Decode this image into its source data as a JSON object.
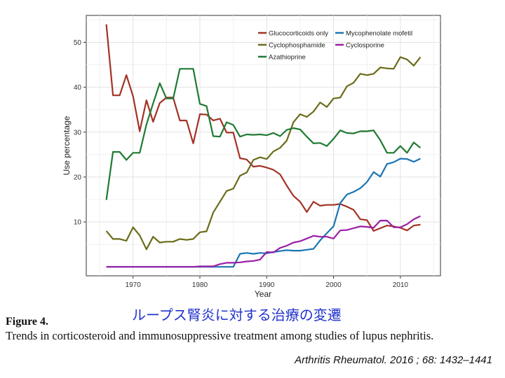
{
  "chart_data": {
    "type": "line",
    "xlabel": "Year",
    "ylabel": "Use percentage",
    "xlim": [
      1963,
      2016
    ],
    "ylim": [
      -2,
      56
    ],
    "x_ticks": [
      1970,
      1980,
      1990,
      2000,
      2010
    ],
    "y_ticks": [
      10,
      20,
      30,
      40,
      50
    ],
    "grid": true,
    "legend_position": "top-right",
    "series": [
      {
        "name": "Glucocorticoids only",
        "color": "#a33225",
        "x": [
          1966,
          1967,
          1968,
          1969,
          1970,
          1971,
          1972,
          1973,
          1974,
          1975,
          1976,
          1977,
          1978,
          1979,
          1980,
          1981,
          1982,
          1983,
          1984,
          1985,
          1986,
          1987,
          1988,
          1989,
          1990,
          1991,
          1992,
          1993,
          1994,
          1995,
          1996,
          1997,
          1998,
          1999,
          2000,
          2001,
          2002,
          2003,
          2004,
          2005,
          2006,
          2007,
          2008,
          2009,
          2010,
          2011,
          2012,
          2013
        ],
        "y": [
          54,
          38.2,
          38.2,
          42.7,
          38,
          30.2,
          37.1,
          32.3,
          36.5,
          37.7,
          37.7,
          32.6,
          32.6,
          27.5,
          34,
          33.9,
          32.6,
          33,
          29.9,
          29.9,
          24.2,
          23.9,
          22.3,
          22.5,
          22.1,
          21.6,
          20.6,
          18.1,
          15.8,
          14.5,
          12.2,
          14.5,
          13.6,
          13.8,
          13.8,
          14,
          13.4,
          12.7,
          10.6,
          10.4,
          8,
          8.6,
          9.2,
          9,
          8.7,
          8.1,
          9.2,
          9.4
        ]
      },
      {
        "name": "Cyclophosphamide",
        "color": "#6b6b1a",
        "x": [
          1966,
          1967,
          1968,
          1969,
          1970,
          1971,
          1972,
          1973,
          1974,
          1975,
          1976,
          1977,
          1978,
          1979,
          1980,
          1981,
          1982,
          1983,
          1984,
          1985,
          1986,
          1987,
          1988,
          1989,
          1990,
          1991,
          1992,
          1993,
          1994,
          1995,
          1996,
          1997,
          1998,
          1999,
          2000,
          2001,
          2002,
          2003,
          2004,
          2005,
          2006,
          2007,
          2008,
          2009,
          2010,
          2011,
          2012,
          2013
        ],
        "y": [
          8,
          6.2,
          6.2,
          5.8,
          8.8,
          7,
          3.9,
          6.7,
          5.4,
          5.6,
          5.6,
          6.2,
          6,
          6.2,
          7.7,
          7.9,
          12.1,
          14.5,
          16.9,
          17.4,
          20.3,
          21,
          23.8,
          24.4,
          24,
          25.7,
          26.5,
          28.1,
          32.2,
          34,
          33.4,
          34.6,
          36.6,
          35.6,
          37.5,
          37.7,
          40.2,
          41,
          43,
          42.7,
          43,
          44.4,
          44.2,
          44.1,
          46.7,
          46.2,
          44.8,
          46.7
        ]
      },
      {
        "name": "Azathioprine",
        "color": "#1f7a32",
        "x": [
          1966,
          1967,
          1968,
          1969,
          1970,
          1971,
          1972,
          1973,
          1974,
          1975,
          1976,
          1977,
          1978,
          1979,
          1980,
          1981,
          1982,
          1983,
          1984,
          1985,
          1986,
          1987,
          1988,
          1989,
          1990,
          1991,
          1992,
          1993,
          1994,
          1995,
          1996,
          1997,
          1998,
          1999,
          2000,
          2001,
          2002,
          2003,
          2004,
          2005,
          2006,
          2007,
          2008,
          2009,
          2010,
          2011,
          2012,
          2013
        ],
        "y": [
          14.9,
          25.6,
          25.6,
          23.8,
          25.4,
          25.4,
          31.7,
          36.4,
          40.9,
          37.5,
          37.5,
          44.1,
          44.1,
          44.1,
          36.3,
          35.8,
          29.1,
          29,
          32.2,
          31.6,
          29,
          29.5,
          29.4,
          29.5,
          29.3,
          29.8,
          29.1,
          30.5,
          30.9,
          30.6,
          29,
          27.5,
          27.6,
          26.9,
          28.5,
          30.4,
          29.8,
          29.7,
          30.2,
          30.2,
          30.4,
          28.2,
          25.4,
          25.4,
          26.9,
          25.4,
          27.7,
          26.5
        ]
      },
      {
        "name": "Mycophenolate mofetil",
        "color": "#1b75b5",
        "x": [
          1966,
          1967,
          1968,
          1969,
          1970,
          1971,
          1972,
          1973,
          1974,
          1975,
          1976,
          1977,
          1978,
          1979,
          1980,
          1981,
          1982,
          1983,
          1984,
          1985,
          1986,
          1987,
          1988,
          1989,
          1990,
          1991,
          1992,
          1993,
          1994,
          1995,
          1996,
          1997,
          1998,
          1999,
          2000,
          2001,
          2002,
          2003,
          2004,
          2005,
          2006,
          2007,
          2008,
          2009,
          2010,
          2011,
          2012,
          2013
        ],
        "y": [
          0,
          0,
          0,
          0,
          0,
          0,
          0,
          0,
          0,
          0,
          0,
          0,
          0,
          0,
          0,
          0,
          0,
          0,
          0,
          0,
          2.9,
          3.1,
          2.9,
          3.1,
          3,
          3.3,
          3.5,
          3.7,
          3.6,
          3.6,
          3.8,
          4,
          5.9,
          7.5,
          9,
          14.2,
          16.1,
          16.7,
          17.5,
          18.9,
          21.1,
          20.1,
          22.9,
          23.3,
          24.1,
          24,
          23.4,
          24.1
        ]
      },
      {
        "name": "Cyclosporine",
        "color": "#9b1fa6",
        "x": [
          1966,
          1967,
          1968,
          1969,
          1970,
          1971,
          1972,
          1973,
          1974,
          1975,
          1976,
          1977,
          1978,
          1979,
          1980,
          1981,
          1982,
          1983,
          1984,
          1985,
          1986,
          1987,
          1988,
          1989,
          1990,
          1991,
          1992,
          1993,
          1994,
          1995,
          1996,
          1997,
          1998,
          1999,
          2000,
          2001,
          2002,
          2003,
          2004,
          2005,
          2006,
          2007,
          2008,
          2009,
          2010,
          2011,
          2012,
          2013
        ],
        "y": [
          0,
          0,
          0,
          0,
          0,
          0,
          0,
          0,
          0,
          0,
          0,
          0,
          0,
          0,
          0.1,
          0.1,
          0.1,
          0.6,
          0.9,
          0.9,
          1,
          1.2,
          1.3,
          1.6,
          3.3,
          3.2,
          4.2,
          4.7,
          5.4,
          5.7,
          6.3,
          6.9,
          6.7,
          6.7,
          6.3,
          8.1,
          8.2,
          8.6,
          9,
          8.9,
          8.7,
          10.3,
          10.3,
          8.8,
          8.8,
          9.5,
          10.6,
          11.3
        ]
      }
    ],
    "legend_order": [
      "Glucocorticoids only",
      "Mycophenolate mofetil",
      "Cyclophosphamide",
      "Cyclosporine",
      "Azathioprine"
    ]
  },
  "caption": {
    "japanese_title": "ループス腎炎に対する治療の変遷",
    "figure_label": "Figure 4.",
    "description": "Trends in corticosteroid and immunosuppressive treatment among studies of lupus nephritis.",
    "citation": "Arthritis Rheumatol. 2016 ; 68: 1432–1441"
  }
}
